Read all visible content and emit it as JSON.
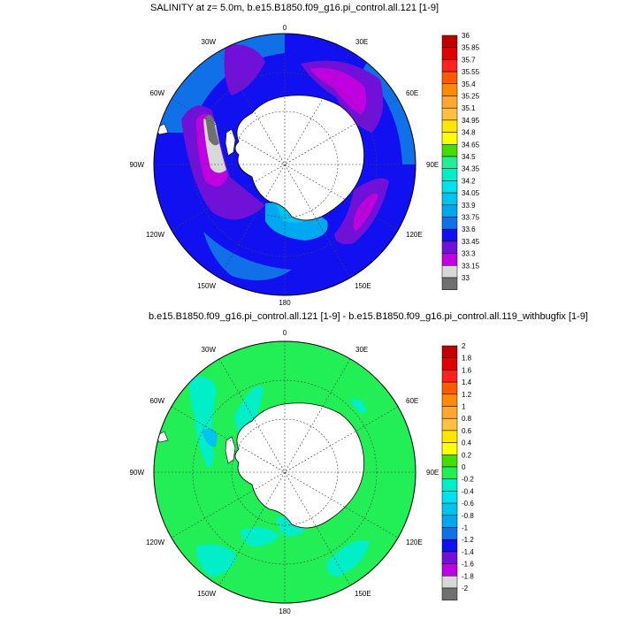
{
  "panels": [
    {
      "title": "SALINITY at z=   5.0m, b.e15.B1850.f09_g16.pi_control.all.121 [1-9]",
      "lon_labels": [
        "0",
        "30E",
        "60E",
        "90E",
        "120E",
        "150E",
        "180",
        "150W",
        "120W",
        "90W",
        "60W",
        "30W"
      ],
      "colorbar": {
        "labels": [
          "36",
          "35.85",
          "35.7",
          "35.55",
          "35.4",
          "35.25",
          "35.1",
          "34.95",
          "34.8",
          "34.65",
          "34.5",
          "34.35",
          "34.2",
          "34.05",
          "33.9",
          "33.75",
          "33.6",
          "33.45",
          "33.3",
          "33.15",
          "33"
        ],
        "colors": [
          "#c00000",
          "#e00000",
          "#ff2020",
          "#ff5a00",
          "#ff8a00",
          "#ffa830",
          "#ffc040",
          "#ffe600",
          "#ffff00",
          "#44dd00",
          "#22ee99",
          "#00eec8",
          "#00e2ee",
          "#00c4f0",
          "#00a8f0",
          "#1070e8",
          "#1010f0",
          "#7010d8",
          "#c000e0",
          "#d8d8d8",
          "#707070"
        ]
      }
    },
    {
      "title": "b.e15.B1850.f09_g16.pi_control.all.121 [1-9] - b.e15.B1850.f09_g16.pi_control.all.119_withbugfix [1-9]",
      "lon_labels": [
        "0",
        "30E",
        "60E",
        "90E",
        "120E",
        "150E",
        "180",
        "150W",
        "120W",
        "90W",
        "60W",
        "30W"
      ],
      "colorbar": {
        "labels": [
          "2",
          "1.8",
          "1.6",
          "1.4",
          "1.2",
          "1",
          "0.8",
          "0.6",
          "0.4",
          "0.2",
          "0",
          "-0.2",
          "-0.4",
          "-0.6",
          "-0.8",
          "-1",
          "-1.2",
          "-1.4",
          "-1.6",
          "-1.8",
          "-2"
        ],
        "colors": [
          "#c00000",
          "#e00000",
          "#ff2020",
          "#ff5a00",
          "#ff8a00",
          "#ffa830",
          "#ffc040",
          "#ffe600",
          "#ffff00",
          "#44dd00",
          "#22ee55",
          "#00eec8",
          "#00e2ee",
          "#00c4f0",
          "#00a8f0",
          "#1070e8",
          "#1010f0",
          "#7010d8",
          "#c000e0",
          "#d8d8d8",
          "#707070"
        ]
      }
    }
  ],
  "colors": {
    "land": "#ffffff",
    "grid": "#444444",
    "outline": "#000000",
    "salinity_base": "#1010f0",
    "diff_base": "#22ee55"
  }
}
